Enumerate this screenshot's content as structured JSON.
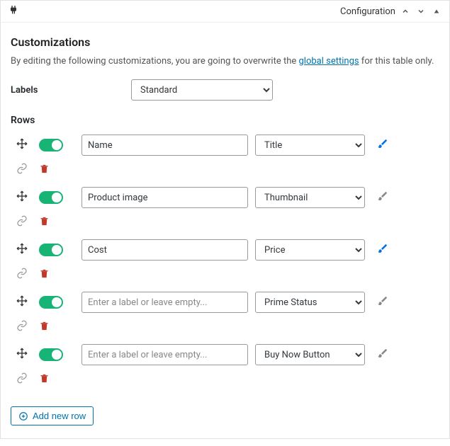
{
  "header": {
    "configuration_label": "Configuration"
  },
  "section": {
    "title": "Customizations",
    "description_pre": "By editing the following customizations, you are going to overwrite the ",
    "description_link": "global settings",
    "description_post": " for this table only."
  },
  "labels": {
    "field_label": "Labels",
    "selected": "Standard"
  },
  "rows_section_title": "Rows",
  "rows": [
    {
      "label": "Name",
      "placeholder": "Enter a label or leave empty...",
      "type": "Title",
      "brush_active": true
    },
    {
      "label": "Product image",
      "placeholder": "Enter a label or leave empty...",
      "type": "Thumbnail",
      "brush_active": false
    },
    {
      "label": "Cost",
      "placeholder": "Enter a label or leave empty...",
      "type": "Price",
      "brush_active": true
    },
    {
      "label": "",
      "placeholder": "Enter a label or leave empty...",
      "type": "Prime Status",
      "brush_active": false
    },
    {
      "label": "",
      "placeholder": "Enter a label or leave empty...",
      "type": "Buy Now Button",
      "brush_active": false
    }
  ],
  "add_row_label": "Add new row",
  "colors": {
    "link": "#0073aa",
    "toggle_on": "#18b475",
    "trash": "#c0392b",
    "brush_active": "#0073e6",
    "brush_inactive": "#888888"
  }
}
